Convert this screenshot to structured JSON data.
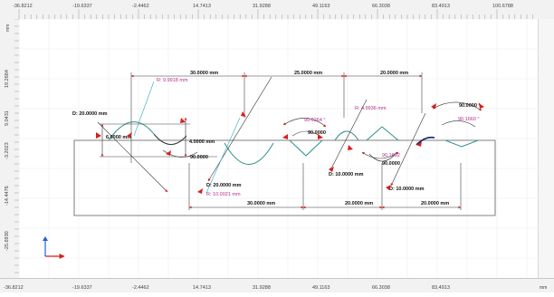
{
  "units": "mm",
  "colors": {
    "ruler_bg": "#f2f2f2",
    "grid": "#e8e8e8",
    "part_outline": "#5a5a5a",
    "dimension_line": "#333333",
    "arrow": "#d61f1f",
    "radius_text": "#b52d8c",
    "profile_curve": "#2f8f8f",
    "axis_x": "#d61f1f",
    "axis_y": "#1f5fd6"
  },
  "rulers": {
    "top_ticks": [
      "-36.8212",
      "-19.6337",
      "-2.4462",
      "14.7413",
      "31.9288",
      "49.1163",
      "66.3038",
      "83.4913",
      "100.6788"
    ],
    "bottom_ticks": [
      "-36.8212",
      "-19.6337",
      "-2.4462",
      "14.7413",
      "31.9288",
      "49.1163",
      "66.3038",
      "83.4913"
    ],
    "left_ticks": [
      "19.2684",
      "9.0431",
      "-3.2023",
      "-14.4476",
      "-25.6930",
      "-36.8212"
    ],
    "unit_top_left": "mm",
    "unit_bottom_right": "mm"
  },
  "annotations": {
    "dims_top": [
      "30.0000 mm",
      "25.0000 mm",
      "20.0000 mm"
    ],
    "dims_bottom": [
      "30.0000 mm",
      "20.0000 mm",
      "20.0000 mm"
    ],
    "diameters": {
      "left": "D:  20.0000 mm",
      "center": "D:  20.0000 mm",
      "mid": "D:  10.0000 mm",
      "right": "D:  10.0000 mm"
    },
    "radii": {
      "top_left": "R:  9.9918 mm",
      "center": "R:  10.0021 mm",
      "right": "R:  4.9936 mm"
    },
    "heights": {
      "left": "6.0000 mm",
      "center": "4.0000 mm"
    },
    "angles": {
      "a_left": "90.0000",
      "a1": "90.0264 °",
      "a2": "90.0000",
      "a3": "90.1692",
      "a4": "90.0000",
      "a5": "90.0000 °",
      "a6": "90.1660 °"
    }
  }
}
